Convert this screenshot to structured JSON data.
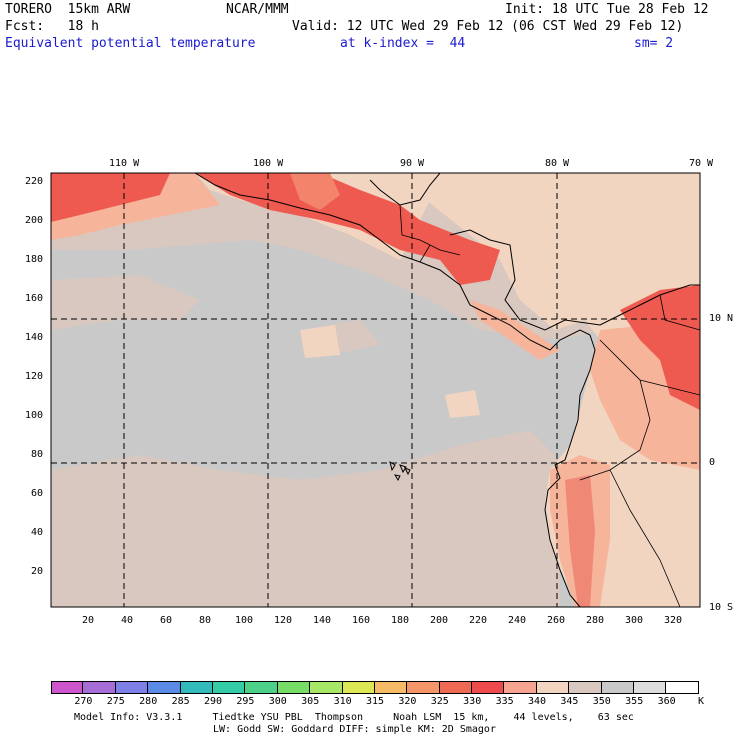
{
  "header": {
    "model": "TORERO  15km ARW",
    "center": "NCAR/MMM",
    "init": "Init: 18 UTC Tue 28 Feb 12",
    "fcst": "Fcst:   18 h",
    "valid": "Valid: 12 UTC Wed 29 Feb 12 (06 CST Wed 29 Feb 12)",
    "field": "Equivalent potential temperature",
    "level": "at k-index =  44",
    "smooth": "sm= 2"
  },
  "map": {
    "lon_labels": [
      "110 W",
      "100 W",
      "90 W",
      "80 W",
      "70 W"
    ],
    "lat_labels": [
      "10 N",
      "0",
      "10 S"
    ],
    "y_ticks": [
      "220",
      "200",
      "180",
      "160",
      "140",
      "120",
      "100",
      "80",
      "60",
      "40",
      "20"
    ],
    "x_ticks": [
      "20",
      "40",
      "60",
      "80",
      "100",
      "120",
      "140",
      "160",
      "180",
      "200",
      "220",
      "240",
      "260",
      "280",
      "300",
      "320"
    ],
    "colors": {
      "ocean_base": "#c9c9c9",
      "band_345": "#d8c8c0",
      "band_340": "#f1d5c1",
      "band_335": "#f6b59a",
      "band_330": "#f08876",
      "band_325": "#ee5a4f",
      "band_320": "#f4836b",
      "grid": "#000000"
    }
  },
  "colorbar": {
    "unit": "K",
    "labels": [
      "270",
      "275",
      "280",
      "285",
      "290",
      "295",
      "300",
      "305",
      "310",
      "315",
      "320",
      "325",
      "330",
      "335",
      "340",
      "345",
      "350",
      "355",
      "360"
    ],
    "colors": [
      "#cc55cc",
      "#a66cd8",
      "#7f7fe8",
      "#5a8ae6",
      "#33bbbb",
      "#33cca6",
      "#4dd088",
      "#77dd66",
      "#a6e866",
      "#dde855",
      "#f6bb66",
      "#f4956a",
      "#ef6a55",
      "#ee4c4c",
      "#f6a390",
      "#f1d5c1",
      "#d8c8c0",
      "#c9c9c9",
      "#dddddd",
      "#ffffff"
    ]
  },
  "footer": {
    "line1": "Model Info: V3.3.1     Tiedtke YSU PBL  Thompson     Noah LSM  15 km,    44 levels,    63 sec",
    "line2": "LW: Godd SW: Goddard DIFF: simple KM: 2D Smagor"
  }
}
